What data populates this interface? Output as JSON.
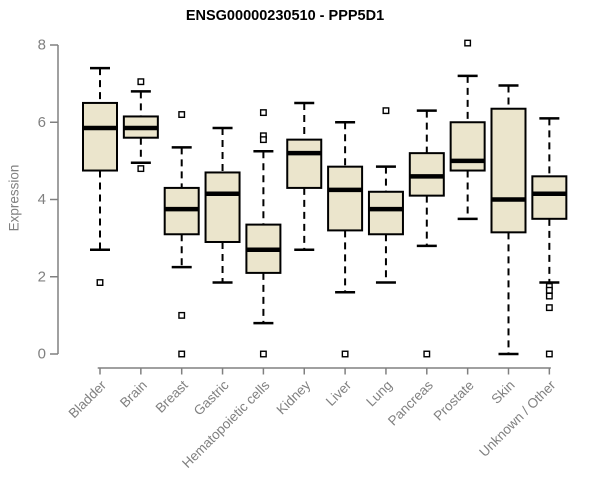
{
  "chart_data": {
    "type": "boxplot",
    "title": "ENSG00000230510 - PPP5D1",
    "ylabel": "Expression",
    "xlabel": "",
    "ylim": [
      0,
      8
    ],
    "yticks": [
      0,
      2,
      4,
      6,
      8
    ],
    "grid": false,
    "legend": null,
    "categories": [
      "Bladder",
      "Brain",
      "Breast",
      "Gastric",
      "Hematopoietic cells",
      "Kidney",
      "Liver",
      "Lung",
      "Pancreas",
      "Prostate",
      "Skin",
      "Unknown / Other"
    ],
    "series": [
      {
        "category": "Bladder",
        "whisker_low": 2.7,
        "q1": 4.75,
        "median": 5.85,
        "q3": 6.5,
        "whisker_high": 7.4,
        "outliers": [
          1.85
        ]
      },
      {
        "category": "Brain",
        "whisker_low": 4.95,
        "q1": 5.6,
        "median": 5.85,
        "q3": 6.15,
        "whisker_high": 6.8,
        "outliers": [
          7.05,
          4.8
        ]
      },
      {
        "category": "Breast",
        "whisker_low": 2.25,
        "q1": 3.1,
        "median": 3.75,
        "q3": 4.3,
        "whisker_high": 5.35,
        "outliers": [
          6.2,
          1.0,
          0.0
        ]
      },
      {
        "category": "Gastric",
        "whisker_low": 1.85,
        "q1": 2.9,
        "median": 4.15,
        "q3": 4.7,
        "whisker_high": 5.85,
        "outliers": []
      },
      {
        "category": "Hematopoietic cells",
        "whisker_low": 0.8,
        "q1": 2.1,
        "median": 2.7,
        "q3": 3.35,
        "whisker_high": 5.25,
        "outliers": [
          6.25,
          5.65,
          5.55,
          0.0
        ]
      },
      {
        "category": "Kidney",
        "whisker_low": 2.7,
        "q1": 4.3,
        "median": 5.2,
        "q3": 5.55,
        "whisker_high": 6.5,
        "outliers": []
      },
      {
        "category": "Liver",
        "whisker_low": 1.6,
        "q1": 3.2,
        "median": 4.25,
        "q3": 4.85,
        "whisker_high": 6.0,
        "outliers": [
          0.0
        ]
      },
      {
        "category": "Lung",
        "whisker_low": 1.85,
        "q1": 3.1,
        "median": 3.75,
        "q3": 4.2,
        "whisker_high": 4.85,
        "outliers": [
          6.3
        ]
      },
      {
        "category": "Pancreas",
        "whisker_low": 2.8,
        "q1": 4.1,
        "median": 4.6,
        "q3": 5.2,
        "whisker_high": 6.3,
        "outliers": [
          0.0
        ]
      },
      {
        "category": "Prostate",
        "whisker_low": 3.5,
        "q1": 4.75,
        "median": 5.0,
        "q3": 6.0,
        "whisker_high": 7.2,
        "outliers": [
          8.05
        ]
      },
      {
        "category": "Skin",
        "whisker_low": 0.0,
        "q1": 3.15,
        "median": 4.0,
        "q3": 6.35,
        "whisker_high": 6.95,
        "outliers": []
      },
      {
        "category": "Unknown / Other",
        "whisker_low": 1.85,
        "q1": 3.5,
        "median": 4.15,
        "q3": 4.6,
        "whisker_high": 6.1,
        "outliers": [
          1.75,
          1.65,
          1.5,
          1.2,
          0.0
        ]
      }
    ],
    "colors": {
      "box_fill": "#EBE5CC",
      "box_border": "#000000",
      "median": "#000000",
      "whisker": "#000000",
      "outlier_fill": "#FFFFFF",
      "axis": "#808080",
      "tick_label": "#808080",
      "title": "#000000",
      "background": "#FFFFFF"
    }
  }
}
